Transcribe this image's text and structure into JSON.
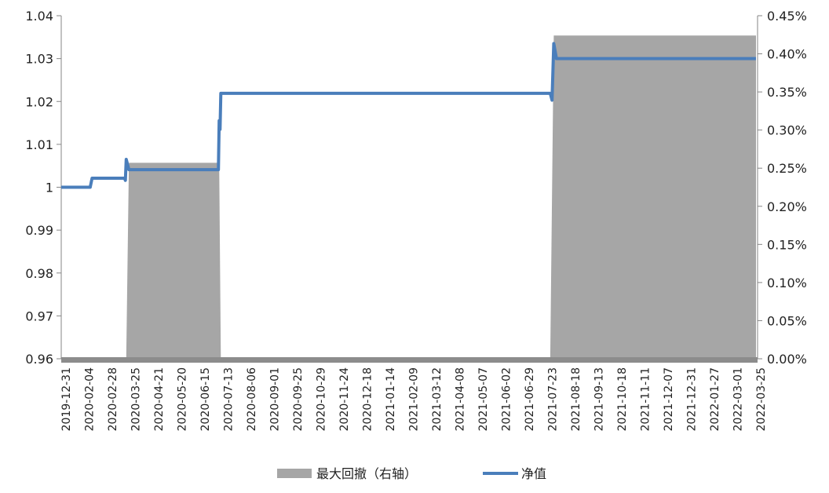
{
  "chart_data": {
    "type": "line+area",
    "title": "",
    "xlabel": "",
    "ylabel_left": "",
    "ylabel_right": "",
    "x_tick_labels": [
      "2019-12-31",
      "2020-02-04",
      "2020-02-28",
      "2020-03-25",
      "2020-04-21",
      "2020-05-20",
      "2020-06-15",
      "2020-07-13",
      "2020-08-06",
      "2020-09-01",
      "2020-09-25",
      "2020-10-29",
      "2020-11-24",
      "2020-12-18",
      "2021-01-14",
      "2021-02-09",
      "2021-03-12",
      "2021-04-08",
      "2021-05-07",
      "2021-06-02",
      "2021-06-29",
      "2021-07-23",
      "2021-08-18",
      "2021-09-13",
      "2021-10-18",
      "2021-11-11",
      "2021-12-07",
      "2021-12-31",
      "2022-01-27",
      "2022-03-01",
      "2022-03-25"
    ],
    "y_left": {
      "range": [
        0.96,
        1.04
      ],
      "ticks": [
        "0.96",
        "0.97",
        "0.98",
        "0.99",
        "1",
        "1.01",
        "1.02",
        "1.03",
        "1.04"
      ]
    },
    "y_right": {
      "range": [
        0,
        0.45
      ],
      "unit": "%",
      "ticks": [
        "0.00%",
        "0.05%",
        "0.10%",
        "0.15%",
        "0.20%",
        "0.25%",
        "0.30%",
        "0.35%",
        "0.40%",
        "0.45%"
      ]
    },
    "grid": false,
    "legend_position": "bottom",
    "series": [
      {
        "name": "最大回撤（右轴）",
        "type": "area",
        "axis": "right",
        "color": "#a6a6a6",
        "points": [
          [
            "2019-12-31",
            0
          ],
          [
            "2020-03-20",
            0
          ],
          [
            "2020-03-23",
            0.257
          ],
          [
            "2020-07-08",
            0.257
          ],
          [
            "2020-07-10",
            0
          ],
          [
            "2021-07-26",
            0
          ],
          [
            "2021-07-30",
            0.424
          ],
          [
            "2022-03-25",
            0.424
          ]
        ]
      },
      {
        "name": "净值",
        "type": "line",
        "axis": "left",
        "color": "#4a7ebb",
        "points": [
          [
            "2019-12-31",
            1.0
          ],
          [
            "2020-02-10",
            1.0
          ],
          [
            "2020-02-12",
            1.0021
          ],
          [
            "2020-03-18",
            1.0021
          ],
          [
            "2020-03-19",
            1.0016
          ],
          [
            "2020-03-20",
            1.0065
          ],
          [
            "2020-03-23",
            1.0041
          ],
          [
            "2020-07-07",
            1.0041
          ],
          [
            "2020-07-08",
            1.0155
          ],
          [
            "2020-07-09",
            1.0135
          ],
          [
            "2020-07-10",
            1.0219
          ],
          [
            "2021-07-26",
            1.0219
          ],
          [
            "2021-07-28",
            1.0203
          ],
          [
            "2021-07-30",
            1.0335
          ],
          [
            "2021-08-02",
            1.03
          ],
          [
            "2022-03-25",
            1.03
          ]
        ]
      }
    ]
  }
}
